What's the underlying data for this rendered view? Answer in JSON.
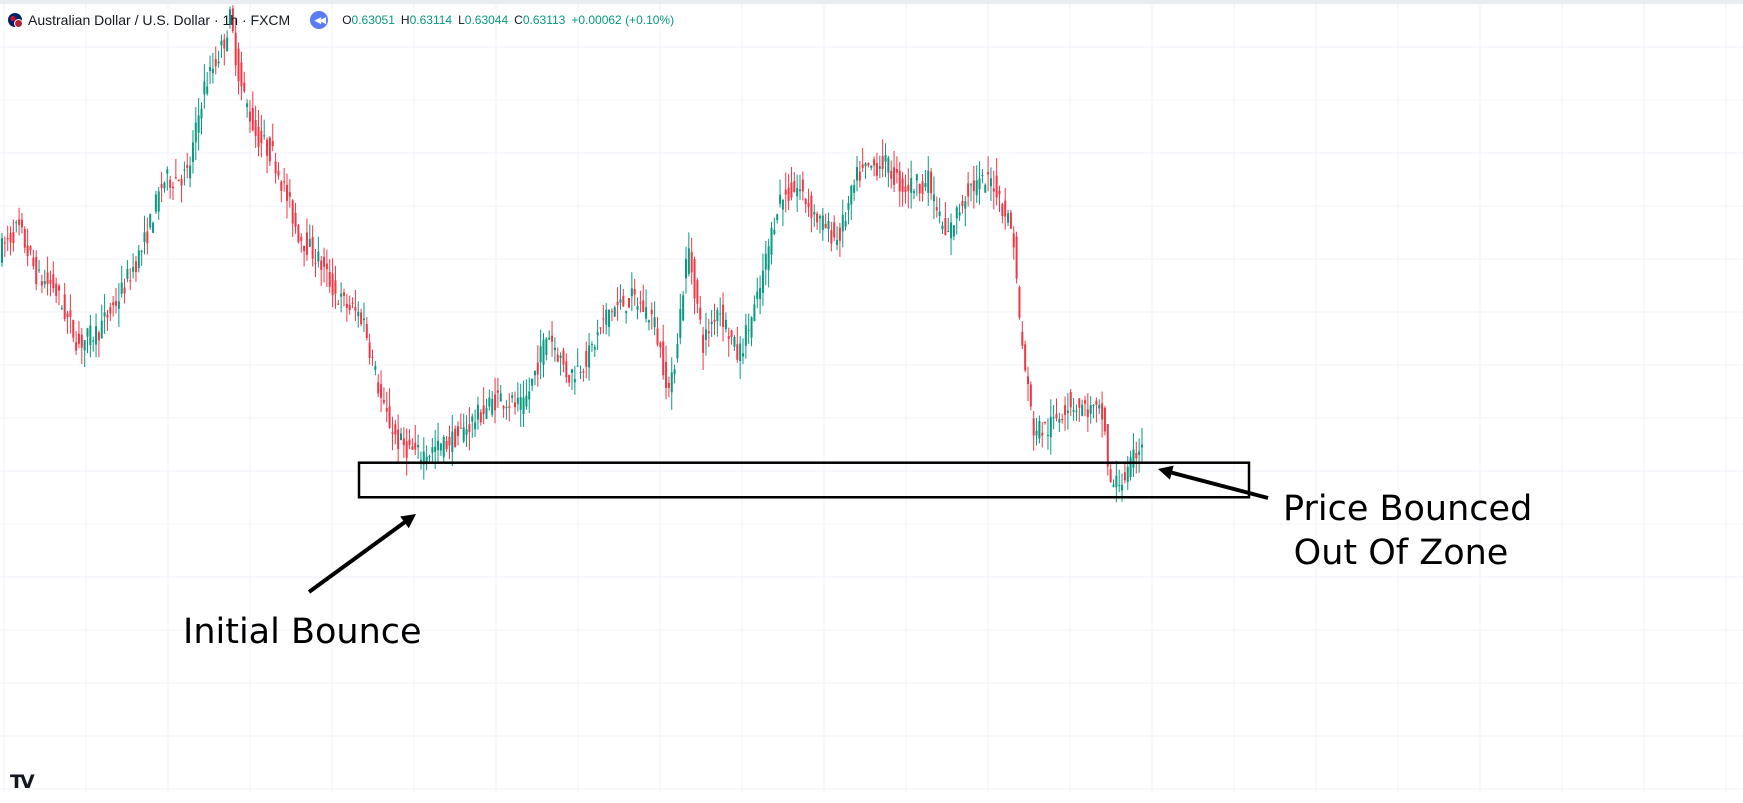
{
  "legend": {
    "symbol": "Australian Dollar / U.S. Dollar · 1h · FXCM",
    "open_label": "O",
    "open": "0.63051",
    "high_label": "H",
    "high": "0.63114",
    "low_label": "L",
    "low": "0.63044",
    "close_label": "C",
    "close": "0.63113",
    "change": "+0.00062 (+0.10%)"
  },
  "icons": {
    "flag": "aud-usd-flag-icon",
    "replay": "replay-icon",
    "logo": "tradingview-logo-icon"
  },
  "annotations": {
    "initial_bounce": "Initial Bounce",
    "price_bounced_line1": "Price Bounced",
    "price_bounced_line2": "Out Of Zone"
  },
  "colors": {
    "up": "#089981",
    "down": "#f23645",
    "grid": "#f0f3fa",
    "zone_border": "#000000"
  },
  "chart_data": {
    "type": "candlestick",
    "title": "Australian Dollar / U.S. Dollar · 1h · FXCM",
    "grid": true,
    "price_path": [
      [
        0,
        0.6357
      ],
      [
        20,
        0.6361
      ],
      [
        40,
        0.6353
      ],
      [
        55,
        0.6352
      ],
      [
        80,
        0.6343
      ],
      [
        100,
        0.6345
      ],
      [
        120,
        0.635
      ],
      [
        145,
        0.6358
      ],
      [
        165,
        0.6368
      ],
      [
        190,
        0.6369
      ],
      [
        205,
        0.6382
      ],
      [
        225,
        0.6389
      ],
      [
        232,
        0.6393
      ],
      [
        242,
        0.6383
      ],
      [
        258,
        0.6375
      ],
      [
        275,
        0.6372
      ],
      [
        300,
        0.636
      ],
      [
        320,
        0.6356
      ],
      [
        340,
        0.635
      ],
      [
        365,
        0.6347
      ],
      [
        385,
        0.6333
      ],
      [
        400,
        0.6328
      ],
      [
        420,
        0.6326
      ],
      [
        440,
        0.6327
      ],
      [
        460,
        0.6329
      ],
      [
        480,
        0.6332
      ],
      [
        500,
        0.6335
      ],
      [
        525,
        0.6333
      ],
      [
        550,
        0.6345
      ],
      [
        570,
        0.6338
      ],
      [
        590,
        0.6341
      ],
      [
        610,
        0.6348
      ],
      [
        635,
        0.635
      ],
      [
        655,
        0.6347
      ],
      [
        672,
        0.6335
      ],
      [
        690,
        0.6358
      ],
      [
        705,
        0.6343
      ],
      [
        720,
        0.6349
      ],
      [
        740,
        0.6341
      ],
      [
        760,
        0.635
      ],
      [
        780,
        0.6365
      ],
      [
        800,
        0.6367
      ],
      [
        820,
        0.6362
      ],
      [
        840,
        0.6359
      ],
      [
        860,
        0.6369
      ],
      [
        885,
        0.6371
      ],
      [
        905,
        0.6367
      ],
      [
        930,
        0.6368
      ],
      [
        948,
        0.6359
      ],
      [
        970,
        0.6367
      ],
      [
        995,
        0.6368
      ],
      [
        1015,
        0.636
      ],
      [
        1022,
        0.6345
      ],
      [
        1035,
        0.633
      ],
      [
        1050,
        0.633
      ],
      [
        1070,
        0.6334
      ],
      [
        1090,
        0.6333
      ],
      [
        1105,
        0.6332
      ],
      [
        1112,
        0.6321
      ],
      [
        1130,
        0.6323
      ],
      [
        1142,
        0.6328
      ]
    ],
    "zone": {
      "from_price": 0.63195,
      "to_price": 0.63248,
      "label": ""
    }
  }
}
